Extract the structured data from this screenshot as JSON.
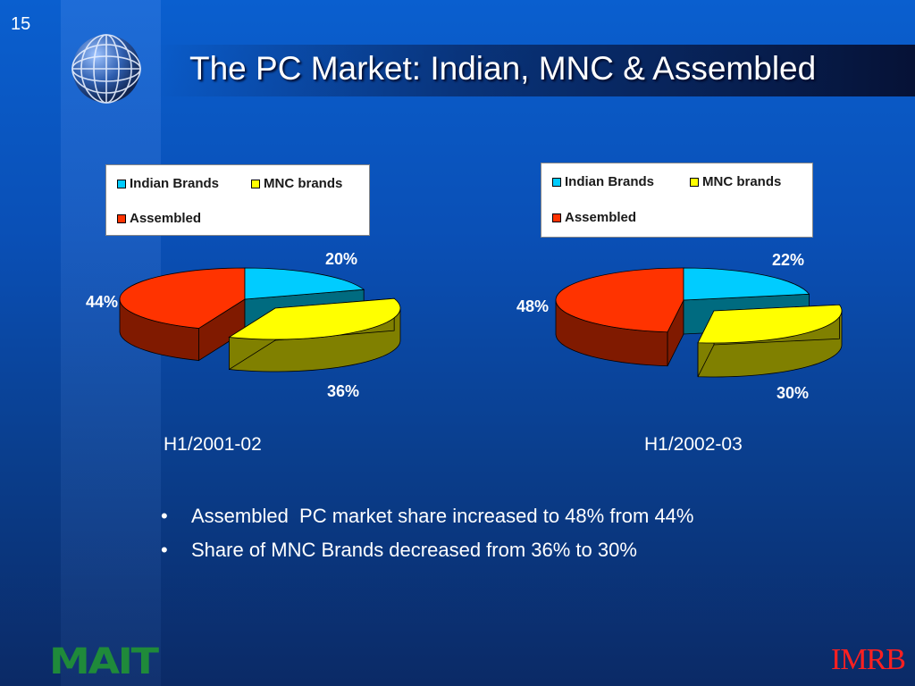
{
  "slide": {
    "number": "15",
    "title": "The PC Market: Indian, MNC & Assembled",
    "footer_left_logo": "MAIT",
    "footer_right_logo": "IMRB"
  },
  "bullets": [
    "Assembled  PC market share increased to 48% from 44%",
    "Share of MNC Brands decreased from 36% to 30%"
  ],
  "colors": {
    "indian": "#00ccff",
    "indian_side": "#006b80",
    "mnc": "#ffff00",
    "mnc_side": "#808000",
    "assembled": "#ff3300",
    "assembled_side": "#801a00"
  },
  "chart_data": [
    {
      "type": "pie",
      "style": "3d-exploded",
      "categories": [
        "Indian Brands",
        "MNC brands",
        "Assembled"
      ],
      "values": [
        20,
        36,
        44
      ],
      "labels": [
        "20%",
        "36%",
        "44%"
      ],
      "legend": [
        "Indian Brands",
        "MNC brands",
        "Assembled"
      ],
      "xlabel": "H1/2001-02"
    },
    {
      "type": "pie",
      "style": "3d-exploded",
      "categories": [
        "Indian Brands",
        "MNC brands",
        "Assembled"
      ],
      "values": [
        22,
        30,
        48
      ],
      "labels": [
        "22%",
        "30%",
        "48%"
      ],
      "legend": [
        "Indian Brands",
        "MNC brands",
        "Assembled"
      ],
      "xlabel": "H1/2002-03"
    }
  ]
}
